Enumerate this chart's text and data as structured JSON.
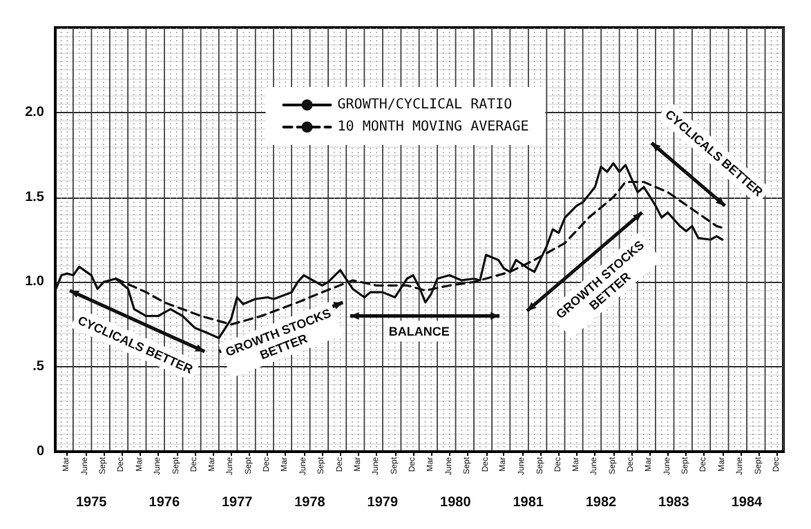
{
  "chart_data": {
    "type": "line",
    "xlim": [
      "1975-01-01",
      "1985-01-01"
    ],
    "ylim": [
      0,
      2.5
    ],
    "yticks": [
      0,
      {
        "value": 0.5,
        "label": ".5"
      },
      {
        "value": 1,
        "label": "1.0"
      },
      {
        "value": 1.5,
        "label": "1.5"
      },
      {
        "value": 2,
        "label": "2.0"
      }
    ],
    "xticks": [
      {
        "value": "1975-07-01",
        "label": "1975"
      },
      {
        "value": "1976-07-01",
        "label": "1976"
      },
      {
        "value": "1977-07-01",
        "label": "1977"
      },
      {
        "value": "1978-07-01",
        "label": "1978"
      },
      {
        "value": "1979-07-01",
        "label": "1979"
      },
      {
        "value": "1980-07-01",
        "label": "1980"
      },
      {
        "value": "1981-07-01",
        "label": "1981"
      },
      {
        "value": "1982-07-01",
        "label": "1982"
      },
      {
        "value": "1983-07-01",
        "label": "1983"
      },
      {
        "value": "1984-07-01",
        "label": "1984"
      }
    ],
    "x2lim": [
      "1975-01-01",
      "1985-01-01"
    ],
    "x2ticks": [
      {
        "value": "1975-03-01",
        "label": "Mar"
      },
      {
        "value": "1975-06-01",
        "label": "June"
      },
      {
        "value": "1975-09-01",
        "label": "Sept"
      },
      {
        "value": "1975-12-01",
        "label": "Dec"
      },
      {
        "value": "1976-03-01",
        "label": "Mar"
      },
      {
        "value": "1976-06-01",
        "label": "June"
      },
      {
        "value": "1976-09-01",
        "label": "Sept"
      },
      {
        "value": "1976-12-01",
        "label": "Dec"
      },
      {
        "value": "1977-03-01",
        "label": "Mar"
      },
      {
        "value": "1977-06-01",
        "label": "June"
      },
      {
        "value": "1977-09-01",
        "label": "Sept"
      },
      {
        "value": "1977-12-01",
        "label": "Dec"
      },
      {
        "value": "1978-03-01",
        "label": "Mar"
      },
      {
        "value": "1978-06-01",
        "label": "June"
      },
      {
        "value": "1978-09-01",
        "label": "Sept"
      },
      {
        "value": "1978-12-01",
        "label": "Dec"
      },
      {
        "value": "1979-03-01",
        "label": "Mar"
      },
      {
        "value": "1979-06-01",
        "label": "June"
      },
      {
        "value": "1979-09-01",
        "label": "Sept"
      },
      {
        "value": "1979-12-01",
        "label": "Dec"
      },
      {
        "value": "1980-03-01",
        "label": "Mar"
      },
      {
        "value": "1980-06-01",
        "label": "June"
      },
      {
        "value": "1980-09-01",
        "label": "Sept"
      },
      {
        "value": "1980-12-01",
        "label": "Dec"
      },
      {
        "value": "1981-03-01",
        "label": "Mar"
      },
      {
        "value": "1981-06-01",
        "label": "June"
      },
      {
        "value": "1981-09-01",
        "label": "Sept"
      },
      {
        "value": "1981-12-01",
        "label": "Dec"
      },
      {
        "value": "1982-03-01",
        "label": "Mar"
      },
      {
        "value": "1982-06-01",
        "label": "June"
      },
      {
        "value": "1982-09-01",
        "label": "Sept"
      },
      {
        "value": "1982-12-01",
        "label": "Dec"
      },
      {
        "value": "1983-03-01",
        "label": "Mar"
      },
      {
        "value": "1983-06-01",
        "label": "June"
      },
      {
        "value": "1983-09-01",
        "label": "Sept"
      },
      {
        "value": "1983-12-01",
        "label": "Dec"
      },
      {
        "value": "1984-03-01",
        "label": "Mar"
      },
      {
        "value": "1984-06-01",
        "label": "June"
      },
      {
        "value": "1984-09-01",
        "label": "Sept"
      },
      {
        "value": "1984-12-01",
        "label": "Dec"
      }
    ],
    "grid": true,
    "legend": "top",
    "marker": "none",
    "series": [
      {
        "name": "GROWTH/CYCLICAL RATIO",
        "color": "#111111",
        "line_style": "solid",
        "x": [
          "1975-01",
          "1975-02",
          "1975-03",
          "1975-04",
          "1975-05",
          "1975-07",
          "1975-08",
          "1975-09",
          "1975-11",
          "1976-01",
          "1976-02",
          "1976-04",
          "1976-06",
          "1976-08",
          "1976-10",
          "1976-12",
          "1977-02",
          "1977-04",
          "1977-06",
          "1977-07",
          "1977-08",
          "1977-10",
          "1977-12",
          "1978-01",
          "1978-04",
          "1978-05",
          "1978-06",
          "1978-07",
          "1978-09",
          "1978-10",
          "1978-12",
          "1979-02",
          "1979-04",
          "1979-05",
          "1979-07",
          "1979-09",
          "1979-11",
          "1979-12",
          "1980-01",
          "1980-02",
          "1980-03",
          "1980-04",
          "1980-06",
          "1980-08",
          "1980-10",
          "1980-11",
          "1980-12",
          "1981-02",
          "1981-03",
          "1981-04",
          "1981-05",
          "1981-07",
          "1981-08",
          "1981-10",
          "1981-11",
          "1981-12",
          "1982-01",
          "1982-03",
          "1982-04",
          "1982-06",
          "1982-07",
          "1982-08",
          "1982-09",
          "1982-10",
          "1982-11",
          "1982-12",
          "1983-01",
          "1983-02",
          "1983-04",
          "1983-05",
          "1983-06",
          "1983-08",
          "1983-09",
          "1983-10",
          "1983-11",
          "1984-01",
          "1984-02",
          "1984-03"
        ],
        "values": [
          0.95,
          1.04,
          1.05,
          1.04,
          1.09,
          1.04,
          0.96,
          1.0,
          1.02,
          0.96,
          0.84,
          0.8,
          0.8,
          0.84,
          0.8,
          0.73,
          0.7,
          0.67,
          0.78,
          0.91,
          0.87,
          0.9,
          0.91,
          0.9,
          0.94,
          1.0,
          1.04,
          1.02,
          0.98,
          1.0,
          1.07,
          0.96,
          0.91,
          0.94,
          0.94,
          0.91,
          1.02,
          1.04,
          0.97,
          0.88,
          0.93,
          1.02,
          1.04,
          1.01,
          1.02,
          1.01,
          1.16,
          1.13,
          1.08,
          1.06,
          1.13,
          1.08,
          1.06,
          1.21,
          1.31,
          1.29,
          1.38,
          1.45,
          1.47,
          1.56,
          1.68,
          1.65,
          1.7,
          1.65,
          1.69,
          1.61,
          1.53,
          1.56,
          1.45,
          1.38,
          1.41,
          1.33,
          1.3,
          1.33,
          1.26,
          1.25,
          1.27,
          1.25
        ]
      },
      {
        "name": "10 MONTH MOVING AVERAGE",
        "color": "#111111",
        "line_style": "dashed",
        "x": [
          "1975-11",
          "1976-04",
          "1976-07",
          "1977-01",
          "1977-06",
          "1977-11",
          "1978-05",
          "1978-09",
          "1979-02",
          "1979-06",
          "1979-11",
          "1980-02",
          "1980-06",
          "1980-10",
          "1981-04",
          "1981-08",
          "1982-01",
          "1982-05",
          "1982-09",
          "1982-11",
          "1983-02",
          "1983-06",
          "1983-10",
          "1984-02",
          "1984-03"
        ],
        "values": [
          1.02,
          0.94,
          0.88,
          0.8,
          0.75,
          0.8,
          0.88,
          0.94,
          1.01,
          0.98,
          0.98,
          0.95,
          0.98,
          1.0,
          1.06,
          1.13,
          1.23,
          1.38,
          1.5,
          1.59,
          1.59,
          1.53,
          1.43,
          1.33,
          1.32
        ]
      }
    ],
    "annotations": [
      "CYCLICALS BETTER",
      "GROWTH STOCKS\nBETTER",
      "BALANCE",
      "GROWTH STOCKS\nBETTER",
      "CYCLICALS BETTER"
    ]
  }
}
